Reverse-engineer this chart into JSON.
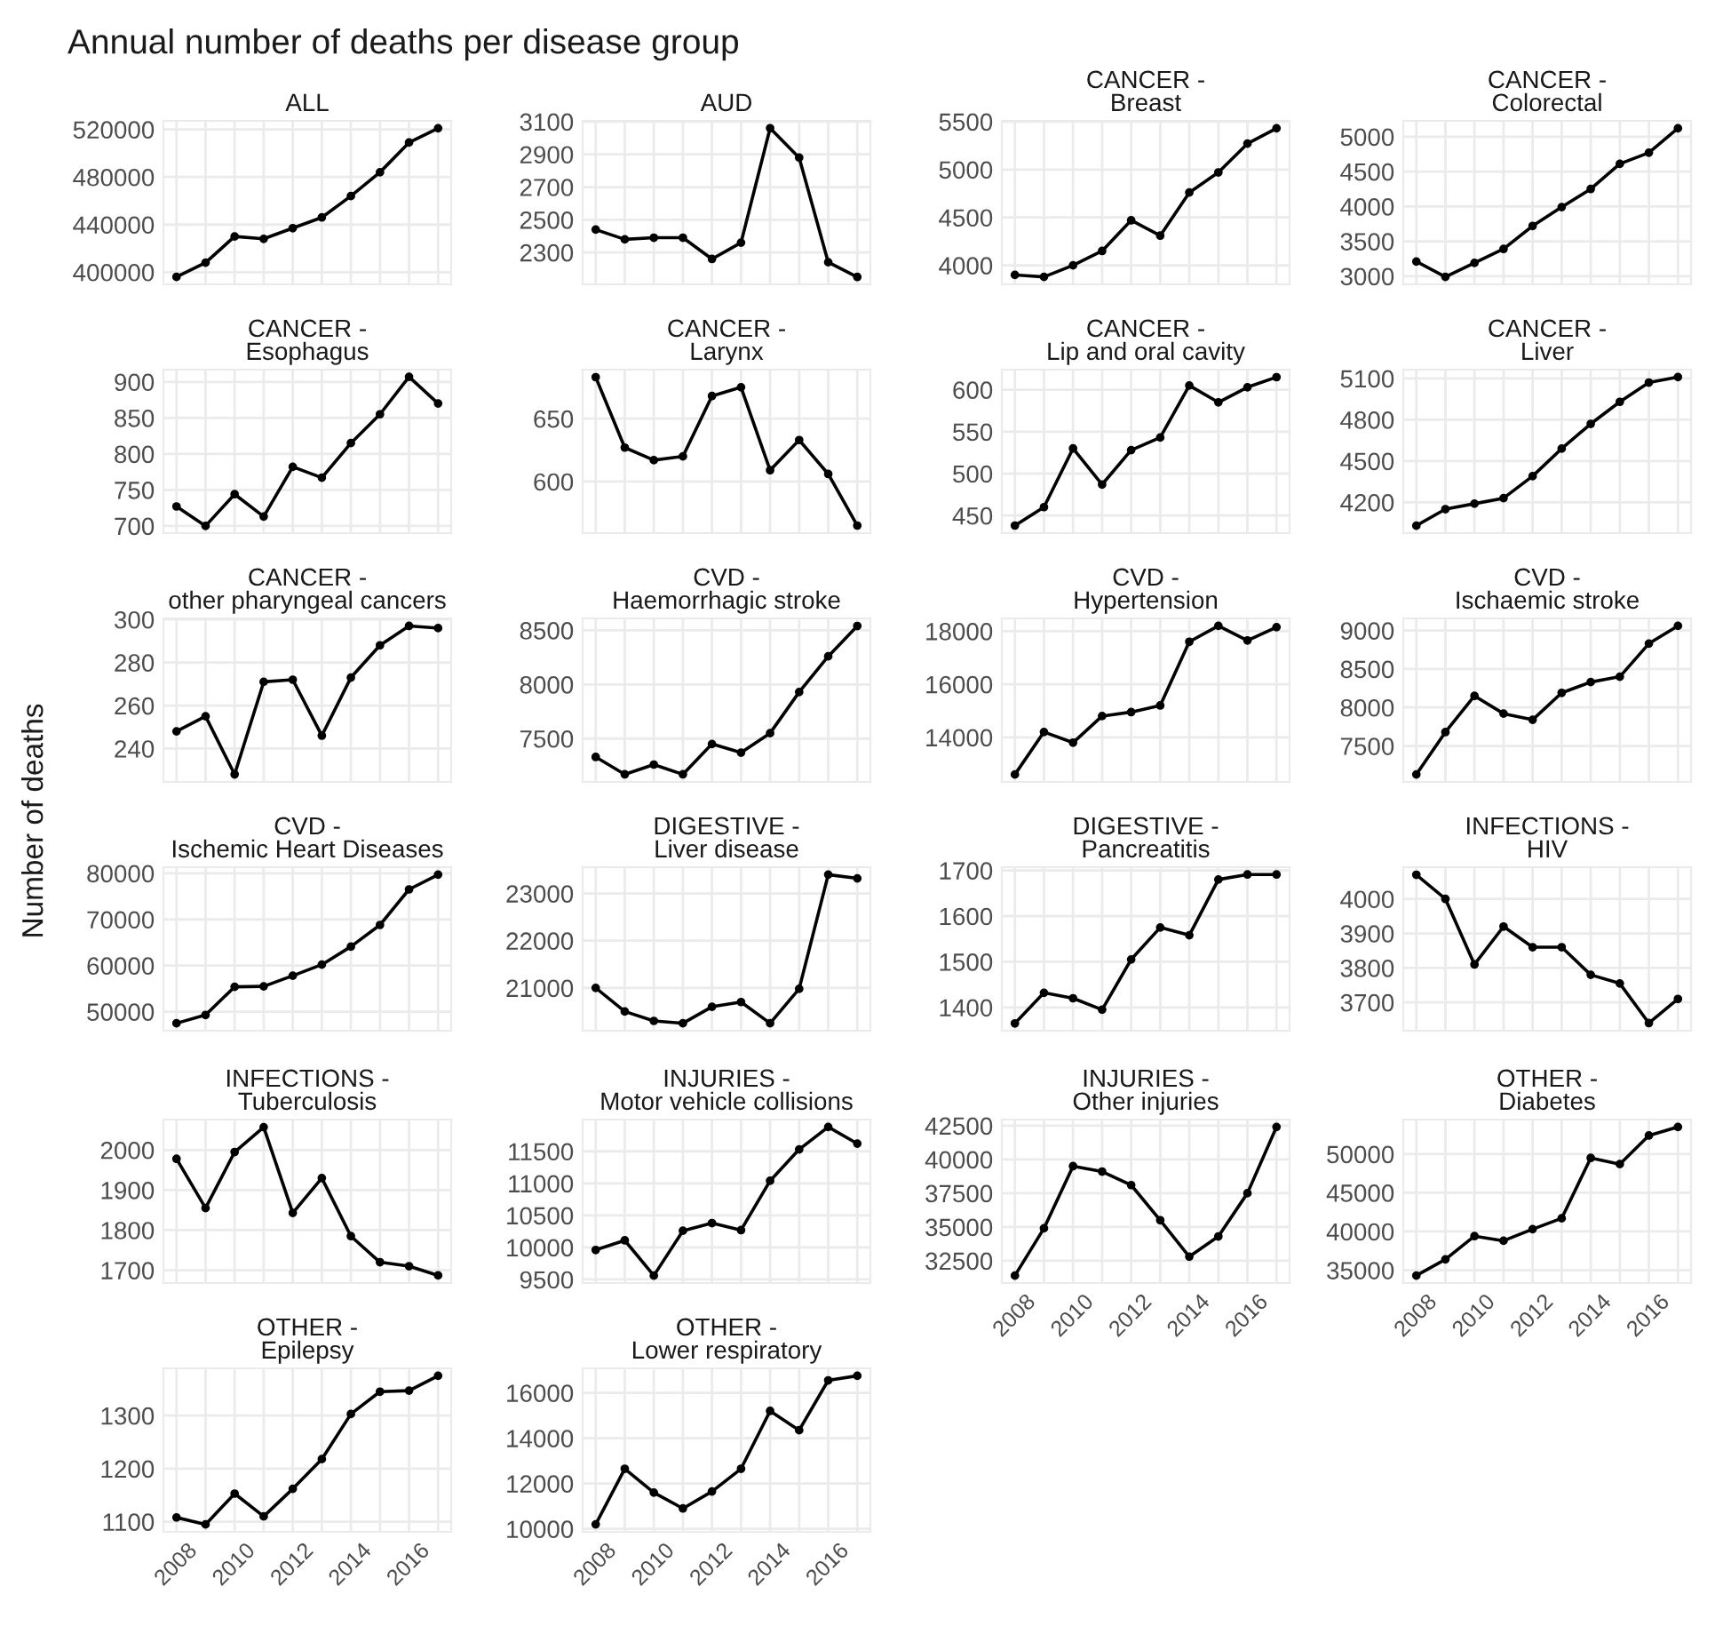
{
  "chart_data": [
    {
      "type": "other",
      "title": "Annual number of deaths per disease group",
      "ylabel": "Number of deaths"
    },
    {
      "type": "line",
      "title": "ALL",
      "x": [
        2008,
        2009,
        2010,
        2011,
        2012,
        2013,
        2014,
        2015,
        2016,
        2017
      ],
      "values": [
        396000,
        408000,
        430000,
        428000,
        437000,
        446000,
        464000,
        484000,
        509000,
        521000
      ],
      "color": "#000000",
      "marker": "circle",
      "xlim": [
        2007.55,
        2017.45
      ],
      "xticks": [
        2008,
        {
          "value": 2009,
          "label": null
        },
        2010,
        {
          "value": 2011,
          "label": null
        },
        2012,
        {
          "value": 2013,
          "label": null
        },
        2014,
        {
          "value": 2015,
          "label": null
        },
        2016,
        {
          "value": 2017,
          "label": null
        }
      ],
      "ylim": [
        389750,
        527250
      ],
      "yticks": [
        400000,
        440000,
        480000,
        520000
      ],
      "grid": true,
      "tick_labels": "y"
    },
    {
      "type": "line",
      "title": "AUD",
      "x": [
        2008,
        2009,
        2010,
        2011,
        2012,
        2013,
        2014,
        2015,
        2016,
        2017
      ],
      "values": [
        2440,
        2380,
        2390,
        2390,
        2260,
        2360,
        3060,
        2880,
        2240,
        2150
      ],
      "color": "#000000",
      "marker": "circle",
      "xlim": [
        2007.55,
        2017.45
      ],
      "xticks": [
        2008,
        {
          "value": 2009,
          "label": null
        },
        2010,
        {
          "value": 2011,
          "label": null
        },
        2012,
        {
          "value": 2013,
          "label": null
        },
        2014,
        {
          "value": 2015,
          "label": null
        },
        2016,
        {
          "value": 2017,
          "label": null
        }
      ],
      "ylim": [
        2105,
        3105
      ],
      "yticks": [
        2300,
        2500,
        2700,
        2900,
        3100
      ],
      "grid": true,
      "tick_labels": "y"
    },
    {
      "type": "line",
      "title": "CANCER -\nBreast",
      "x": [
        2008,
        2009,
        2010,
        2011,
        2012,
        2013,
        2014,
        2015,
        2016,
        2017
      ],
      "values": [
        3900,
        3880,
        4000,
        4150,
        4470,
        4310,
        4760,
        4970,
        5270,
        5430
      ],
      "color": "#000000",
      "marker": "circle",
      "xlim": [
        2007.55,
        2017.45
      ],
      "xticks": [
        2008,
        {
          "value": 2009,
          "label": null
        },
        2010,
        {
          "value": 2011,
          "label": null
        },
        2012,
        {
          "value": 2013,
          "label": null
        },
        2014,
        {
          "value": 2015,
          "label": null
        },
        2016,
        {
          "value": 2017,
          "label": null
        }
      ],
      "ylim": [
        3802,
        5508
      ],
      "yticks": [
        4000,
        4500,
        5000,
        5500
      ],
      "grid": true,
      "tick_labels": "y"
    },
    {
      "type": "line",
      "title": "CANCER -\nColorectal",
      "x": [
        2008,
        2009,
        2010,
        2011,
        2012,
        2013,
        2014,
        2015,
        2016,
        2017
      ],
      "values": [
        3210,
        2990,
        3190,
        3390,
        3720,
        3990,
        4250,
        4610,
        4770,
        5120
      ],
      "color": "#000000",
      "marker": "circle",
      "xlim": [
        2007.55,
        2017.45
      ],
      "xticks": [
        2008,
        {
          "value": 2009,
          "label": null
        },
        2010,
        {
          "value": 2011,
          "label": null
        },
        2012,
        {
          "value": 2013,
          "label": null
        },
        2014,
        {
          "value": 2015,
          "label": null
        },
        2016,
        {
          "value": 2017,
          "label": null
        }
      ],
      "ylim": [
        2883,
        5227
      ],
      "yticks": [
        3000,
        3500,
        4000,
        4500,
        5000
      ],
      "grid": true,
      "tick_labels": "y"
    },
    {
      "type": "line",
      "title": "CANCER -\nEsophagus",
      "x": [
        2008,
        2009,
        2010,
        2011,
        2012,
        2013,
        2014,
        2015,
        2016,
        2017
      ],
      "values": [
        727,
        700,
        744,
        713,
        782,
        767,
        815,
        855,
        907,
        870
      ],
      "color": "#000000",
      "marker": "circle",
      "xlim": [
        2007.55,
        2017.45
      ],
      "xticks": [
        2008,
        {
          "value": 2009,
          "label": null
        },
        2010,
        {
          "value": 2011,
          "label": null
        },
        2012,
        {
          "value": 2013,
          "label": null
        },
        2014,
        {
          "value": 2015,
          "label": null
        },
        2016,
        {
          "value": 2017,
          "label": null
        }
      ],
      "ylim": [
        690,
        917
      ],
      "yticks": [
        700,
        750,
        800,
        850,
        900
      ],
      "grid": true,
      "tick_labels": "y"
    },
    {
      "type": "line",
      "title": "CANCER -\nLarynx",
      "x": [
        2008,
        2009,
        2010,
        2011,
        2012,
        2013,
        2014,
        2015,
        2016,
        2017
      ],
      "values": [
        683,
        627,
        617,
        620,
        668,
        675,
        609,
        633,
        606,
        565
      ],
      "color": "#000000",
      "marker": "circle",
      "xlim": [
        2007.55,
        2017.45
      ],
      "xticks": [
        2008,
        {
          "value": 2009,
          "label": null
        },
        2010,
        {
          "value": 2011,
          "label": null
        },
        2012,
        {
          "value": 2013,
          "label": null
        },
        2014,
        {
          "value": 2015,
          "label": null
        },
        2016,
        {
          "value": 2017,
          "label": null
        }
      ],
      "ylim": [
        559,
        689
      ],
      "yticks": [
        600,
        650
      ],
      "grid": true,
      "tick_labels": "y"
    },
    {
      "type": "line",
      "title": "CANCER -\nLip and oral cavity",
      "x": [
        2008,
        2009,
        2010,
        2011,
        2012,
        2013,
        2014,
        2015,
        2016,
        2017
      ],
      "values": [
        438,
        460,
        530,
        487,
        528,
        543,
        605,
        585,
        603,
        615
      ],
      "color": "#000000",
      "marker": "circle",
      "xlim": [
        2007.55,
        2017.45
      ],
      "xticks": [
        2008,
        {
          "value": 2009,
          "label": null
        },
        2010,
        {
          "value": 2011,
          "label": null
        },
        2012,
        {
          "value": 2013,
          "label": null
        },
        2014,
        {
          "value": 2015,
          "label": null
        },
        2016,
        {
          "value": 2017,
          "label": null
        }
      ],
      "ylim": [
        429,
        624
      ],
      "yticks": [
        450,
        500,
        550,
        600
      ],
      "grid": true,
      "tick_labels": "y"
    },
    {
      "type": "line",
      "title": "CANCER -\nLiver",
      "x": [
        2008,
        2009,
        2010,
        2011,
        2012,
        2013,
        2014,
        2015,
        2016,
        2017
      ],
      "values": [
        4030,
        4150,
        4190,
        4230,
        4390,
        4590,
        4770,
        4930,
        5070,
        5110
      ],
      "color": "#000000",
      "marker": "circle",
      "xlim": [
        2007.55,
        2017.45
      ],
      "xticks": [
        2008,
        {
          "value": 2009,
          "label": null
        },
        2010,
        {
          "value": 2011,
          "label": null
        },
        2012,
        {
          "value": 2013,
          "label": null
        },
        2014,
        {
          "value": 2015,
          "label": null
        },
        2016,
        {
          "value": 2017,
          "label": null
        }
      ],
      "ylim": [
        3976,
        5164
      ],
      "yticks": [
        4200,
        4500,
        4800,
        5100
      ],
      "grid": true,
      "tick_labels": "y"
    },
    {
      "type": "line",
      "title": "CANCER -\nother pharyngeal cancers",
      "x": [
        2008,
        2009,
        2010,
        2011,
        2012,
        2013,
        2014,
        2015,
        2016,
        2017
      ],
      "values": [
        248,
        255,
        228,
        271,
        272,
        246,
        273,
        288,
        297,
        296
      ],
      "color": "#000000",
      "marker": "circle",
      "xlim": [
        2007.55,
        2017.45
      ],
      "xticks": [
        2008,
        {
          "value": 2009,
          "label": null
        },
        2010,
        {
          "value": 2011,
          "label": null
        },
        2012,
        {
          "value": 2013,
          "label": null
        },
        2014,
        {
          "value": 2015,
          "label": null
        },
        2016,
        {
          "value": 2017,
          "label": null
        }
      ],
      "ylim": [
        224.5,
        300.5
      ],
      "yticks": [
        240,
        260,
        280,
        300
      ],
      "grid": true,
      "tick_labels": "y"
    },
    {
      "type": "line",
      "title": "CVD -\nHaemorrhagic stroke",
      "x": [
        2008,
        2009,
        2010,
        2011,
        2012,
        2013,
        2014,
        2015,
        2016,
        2017
      ],
      "values": [
        7330,
        7170,
        7260,
        7170,
        7450,
        7370,
        7550,
        7930,
        8260,
        8540
      ],
      "color": "#000000",
      "marker": "circle",
      "xlim": [
        2007.55,
        2017.45
      ],
      "xticks": [
        2008,
        {
          "value": 2009,
          "label": null
        },
        2010,
        {
          "value": 2011,
          "label": null
        },
        2012,
        {
          "value": 2013,
          "label": null
        },
        2014,
        {
          "value": 2015,
          "label": null
        },
        2016,
        {
          "value": 2017,
          "label": null
        }
      ],
      "ylim": [
        7100,
        8610
      ],
      "yticks": [
        7500,
        8000,
        8500
      ],
      "grid": true,
      "tick_labels": "y"
    },
    {
      "type": "line",
      "title": "CVD -\nHypertension",
      "x": [
        2008,
        2009,
        2010,
        2011,
        2012,
        2013,
        2014,
        2015,
        2016,
        2017
      ],
      "values": [
        12600,
        14200,
        13800,
        14800,
        14950,
        15200,
        17600,
        18200,
        17650,
        18150
      ],
      "color": "#000000",
      "marker": "circle",
      "xlim": [
        2007.55,
        2017.45
      ],
      "xticks": [
        2008,
        {
          "value": 2009,
          "label": null
        },
        2010,
        {
          "value": 2011,
          "label": null
        },
        2012,
        {
          "value": 2013,
          "label": null
        },
        2014,
        {
          "value": 2015,
          "label": null
        },
        2016,
        {
          "value": 2017,
          "label": null
        }
      ],
      "ylim": [
        12320,
        18480
      ],
      "yticks": [
        14000,
        16000,
        18000
      ],
      "grid": true,
      "tick_labels": "y"
    },
    {
      "type": "line",
      "title": "CVD -\nIschaemic stroke",
      "x": [
        2008,
        2009,
        2010,
        2011,
        2012,
        2013,
        2014,
        2015,
        2016,
        2017
      ],
      "values": [
        7130,
        7680,
        8150,
        7920,
        7840,
        8190,
        8330,
        8400,
        8830,
        9060
      ],
      "color": "#000000",
      "marker": "circle",
      "xlim": [
        2007.55,
        2017.45
      ],
      "xticks": [
        2008,
        {
          "value": 2009,
          "label": null
        },
        2010,
        {
          "value": 2011,
          "label": null
        },
        2012,
        {
          "value": 2013,
          "label": null
        },
        2014,
        {
          "value": 2015,
          "label": null
        },
        2016,
        {
          "value": 2017,
          "label": null
        }
      ],
      "ylim": [
        7033,
        9157
      ],
      "yticks": [
        7500,
        8000,
        8500,
        9000
      ],
      "grid": true,
      "tick_labels": "y"
    },
    {
      "type": "line",
      "title": "CVD -\nIschemic Heart Diseases",
      "x": [
        2008,
        2009,
        2010,
        2011,
        2012,
        2013,
        2014,
        2015,
        2016,
        2017
      ],
      "values": [
        47500,
        49300,
        55400,
        55500,
        57800,
        60200,
        64100,
        68800,
        76500,
        79700
      ],
      "color": "#000000",
      "marker": "circle",
      "xlim": [
        2007.55,
        2017.45
      ],
      "xticks": [
        2008,
        {
          "value": 2009,
          "label": null
        },
        2010,
        {
          "value": 2011,
          "label": null
        },
        2012,
        {
          "value": 2013,
          "label": null
        },
        2014,
        {
          "value": 2015,
          "label": null
        },
        2016,
        {
          "value": 2017,
          "label": null
        }
      ],
      "ylim": [
        45890,
        81310
      ],
      "yticks": [
        50000,
        60000,
        70000,
        80000
      ],
      "grid": true,
      "tick_labels": "y"
    },
    {
      "type": "line",
      "title": "DIGESTIVE -\nLiver disease",
      "x": [
        2008,
        2009,
        2010,
        2011,
        2012,
        2013,
        2014,
        2015,
        2016,
        2017
      ],
      "values": [
        21000,
        20500,
        20300,
        20250,
        20600,
        20700,
        20250,
        20980,
        23400,
        23320
      ],
      "color": "#000000",
      "marker": "circle",
      "xlim": [
        2007.55,
        2017.45
      ],
      "xticks": [
        2008,
        {
          "value": 2009,
          "label": null
        },
        2010,
        {
          "value": 2011,
          "label": null
        },
        2012,
        {
          "value": 2013,
          "label": null
        },
        2014,
        {
          "value": 2015,
          "label": null
        },
        2016,
        {
          "value": 2017,
          "label": null
        }
      ],
      "ylim": [
        20093,
        23557
      ],
      "yticks": [
        21000,
        22000,
        23000
      ],
      "grid": true,
      "tick_labels": "y"
    },
    {
      "type": "line",
      "title": "DIGESTIVE -\nPancreatitis",
      "x": [
        2008,
        2009,
        2010,
        2011,
        2012,
        2013,
        2014,
        2015,
        2016,
        2017
      ],
      "values": [
        1365,
        1432,
        1420,
        1395,
        1505,
        1575,
        1558,
        1680,
        1691,
        1691
      ],
      "color": "#000000",
      "marker": "circle",
      "xlim": [
        2007.55,
        2017.45
      ],
      "xticks": [
        2008,
        {
          "value": 2009,
          "label": null
        },
        2010,
        {
          "value": 2011,
          "label": null
        },
        2012,
        {
          "value": 2013,
          "label": null
        },
        2014,
        {
          "value": 2015,
          "label": null
        },
        2016,
        {
          "value": 2017,
          "label": null
        }
      ],
      "ylim": [
        1349,
        1707
      ],
      "yticks": [
        1400,
        1500,
        1600,
        1700
      ],
      "grid": true,
      "tick_labels": "y"
    },
    {
      "type": "line",
      "title": "INFECTIONS -\nHIV",
      "x": [
        2008,
        2009,
        2010,
        2011,
        2012,
        2013,
        2014,
        2015,
        2016,
        2017
      ],
      "values": [
        4070,
        4000,
        3810,
        3920,
        3860,
        3860,
        3780,
        3755,
        3640,
        3710
      ],
      "color": "#000000",
      "marker": "circle",
      "xlim": [
        2007.55,
        2017.45
      ],
      "xticks": [
        2008,
        {
          "value": 2009,
          "label": null
        },
        2010,
        {
          "value": 2011,
          "label": null
        },
        2012,
        {
          "value": 2013,
          "label": null
        },
        2014,
        {
          "value": 2015,
          "label": null
        },
        2016,
        {
          "value": 2017,
          "label": null
        }
      ],
      "ylim": [
        3618,
        4092
      ],
      "yticks": [
        3700,
        3800,
        3900,
        4000
      ],
      "grid": true,
      "tick_labels": "y"
    },
    {
      "type": "line",
      "title": "INFECTIONS -\nTuberculosis",
      "x": [
        2008,
        2009,
        2010,
        2011,
        2012,
        2013,
        2014,
        2015,
        2016,
        2017
      ],
      "values": [
        1978,
        1855,
        1995,
        2057,
        1843,
        1930,
        1785,
        1720,
        1710,
        1687
      ],
      "color": "#000000",
      "marker": "circle",
      "xlim": [
        2007.55,
        2017.45
      ],
      "xticks": [
        2008,
        {
          "value": 2009,
          "label": null
        },
        2010,
        {
          "value": 2011,
          "label": null
        },
        2012,
        {
          "value": 2013,
          "label": null
        },
        2014,
        {
          "value": 2015,
          "label": null
        },
        2016,
        {
          "value": 2017,
          "label": null
        }
      ],
      "ylim": [
        1668,
        2076
      ],
      "yticks": [
        1700,
        1800,
        1900,
        2000
      ],
      "grid": true,
      "tick_labels": "y"
    },
    {
      "type": "line",
      "title": "INJURIES -\nMotor vehicle collisions",
      "x": [
        2008,
        2009,
        2010,
        2011,
        2012,
        2013,
        2014,
        2015,
        2016,
        2017
      ],
      "values": [
        9960,
        10110,
        9560,
        10260,
        10380,
        10270,
        11040,
        11530,
        11880,
        11620
      ],
      "color": "#000000",
      "marker": "circle",
      "xlim": [
        2007.55,
        2017.45
      ],
      "xticks": [
        2008,
        {
          "value": 2009,
          "label": null
        },
        2010,
        {
          "value": 2011,
          "label": null
        },
        2012,
        {
          "value": 2013,
          "label": null
        },
        2014,
        {
          "value": 2015,
          "label": null
        },
        2016,
        {
          "value": 2017,
          "label": null
        }
      ],
      "ylim": [
        9444,
        11996
      ],
      "yticks": [
        9500,
        10000,
        10500,
        11000,
        11500
      ],
      "grid": true,
      "tick_labels": "y"
    },
    {
      "type": "line",
      "title": "INJURIES -\nOther injuries",
      "x": [
        2008,
        2009,
        2010,
        2011,
        2012,
        2013,
        2014,
        2015,
        2016,
        2017
      ],
      "values": [
        31400,
        34900,
        39500,
        39100,
        38100,
        35500,
        32800,
        34300,
        37500,
        42400
      ],
      "color": "#000000",
      "marker": "circle",
      "xlim": [
        2007.55,
        2017.45
      ],
      "xticks": [
        2008,
        {
          "value": 2009,
          "label": null
        },
        2010,
        {
          "value": 2011,
          "label": null
        },
        2012,
        {
          "value": 2013,
          "label": null
        },
        2014,
        {
          "value": 2015,
          "label": null
        },
        2016,
        {
          "value": 2017,
          "label": null
        }
      ],
      "ylim": [
        30850,
        42950
      ],
      "yticks": [
        32500,
        35000,
        37500,
        40000,
        42500
      ],
      "grid": true
    },
    {
      "type": "line",
      "title": "OTHER -\nDiabetes",
      "x": [
        2008,
        2009,
        2010,
        2011,
        2012,
        2013,
        2014,
        2015,
        2016,
        2017
      ],
      "values": [
        34300,
        36400,
        39400,
        38800,
        40300,
        41700,
        49500,
        48700,
        52400,
        53500
      ],
      "color": "#000000",
      "marker": "circle",
      "xlim": [
        2007.55,
        2017.45
      ],
      "xticks": [
        2008,
        {
          "value": 2009,
          "label": null
        },
        2010,
        {
          "value": 2011,
          "label": null
        },
        2012,
        {
          "value": 2013,
          "label": null
        },
        2014,
        {
          "value": 2015,
          "label": null
        },
        2016,
        {
          "value": 2017,
          "label": null
        }
      ],
      "ylim": [
        33340,
        54460
      ],
      "yticks": [
        35000,
        40000,
        45000,
        50000
      ],
      "grid": true
    },
    {
      "type": "line",
      "title": "OTHER -\nEpilepsy",
      "x": [
        2008,
        2009,
        2010,
        2011,
        2012,
        2013,
        2014,
        2015,
        2016,
        2017
      ],
      "values": [
        1108,
        1095,
        1153,
        1110,
        1162,
        1218,
        1303,
        1345,
        1347,
        1375
      ],
      "color": "#000000",
      "marker": "circle",
      "xlim": [
        2007.55,
        2017.45
      ],
      "xticks": [
        2008,
        {
          "value": 2009,
          "label": null
        },
        2010,
        {
          "value": 2011,
          "label": null
        },
        2012,
        {
          "value": 2013,
          "label": null
        },
        2014,
        {
          "value": 2015,
          "label": null
        },
        2016,
        {
          "value": 2017,
          "label": null
        }
      ],
      "ylim": [
        1081,
        1389
      ],
      "yticks": [
        1100,
        1200,
        1300
      ],
      "grid": true
    },
    {
      "type": "line",
      "title": "OTHER -\nLower respiratory",
      "x": [
        2008,
        2009,
        2010,
        2011,
        2012,
        2013,
        2014,
        2015,
        2016,
        2017
      ],
      "values": [
        10200,
        12650,
        11600,
        10900,
        11650,
        12650,
        15200,
        14350,
        16550,
        16750
      ],
      "color": "#000000",
      "marker": "circle",
      "xlim": [
        2007.55,
        2017.45
      ],
      "xticks": [
        2008,
        {
          "value": 2009,
          "label": null
        },
        2010,
        {
          "value": 2011,
          "label": null
        },
        2012,
        {
          "value": 2013,
          "label": null
        },
        2014,
        {
          "value": 2015,
          "label": null
        },
        2016,
        {
          "value": 2017,
          "label": null
        }
      ],
      "ylim": [
        9870,
        17080
      ],
      "yticks": [
        10000,
        12000,
        14000,
        16000
      ],
      "grid": true
    }
  ]
}
